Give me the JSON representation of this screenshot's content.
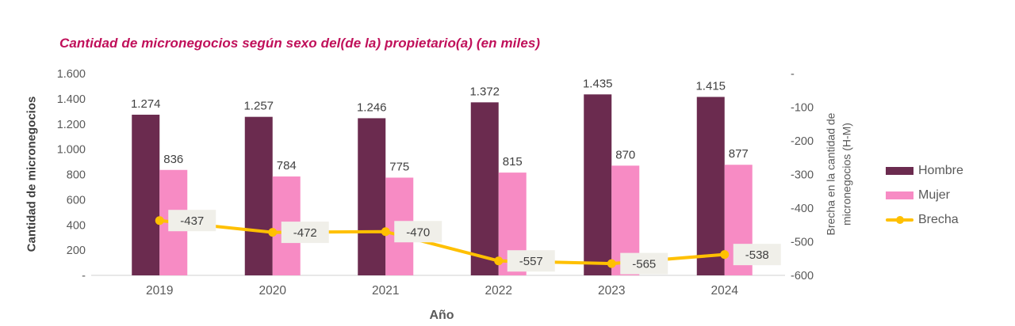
{
  "chart_data": {
    "type": "bar",
    "subtype": "grouped-bars-with-line-combo",
    "title": "Cantidad de micronegocios según sexo del(de la) propietario(a) (en miles)",
    "categories": [
      "2019",
      "2020",
      "2021",
      "2022",
      "2023",
      "2024"
    ],
    "series": [
      {
        "name": "Hombre",
        "type": "bar",
        "axis": "left",
        "color": "#6B2B4F",
        "values": [
          1274,
          1257,
          1246,
          1372,
          1435,
          1415
        ],
        "labels": [
          "1.274",
          "1.257",
          "1.246",
          "1.372",
          "1.435",
          "1.415"
        ]
      },
      {
        "name": "Mujer",
        "type": "bar",
        "axis": "left",
        "color": "#F78BC4",
        "values": [
          836,
          784,
          775,
          815,
          870,
          877
        ],
        "labels": [
          "836",
          "784",
          "775",
          "815",
          "870",
          "877"
        ]
      },
      {
        "name": "Brecha",
        "type": "line",
        "axis": "right",
        "color": "#FFC000",
        "values": [
          -437,
          -472,
          -470,
          -557,
          -565,
          -538
        ],
        "labels": [
          "-437",
          "-472",
          "-470",
          "-557",
          "-565",
          "-538"
        ]
      }
    ],
    "left_axis": {
      "title": "Cantidad de micronegocios",
      "min": 0,
      "max": 1600,
      "tick_labels": [
        "1.600",
        "1.400",
        "1.200",
        "1.000",
        "800",
        "600",
        "400",
        "200",
        "-"
      ]
    },
    "right_axis": {
      "title": "Brecha en la cantidad de micronegocios (H-M)",
      "title_lines": [
        "Brecha en la cantidad de",
        "micronegocios (H-M)"
      ],
      "min": -600,
      "max": 0,
      "tick_labels": [
        "-",
        "-100",
        "-200",
        "-300",
        "-400",
        "-500",
        "-600"
      ]
    },
    "x_axis": {
      "title": "Año"
    },
    "legend": [
      "Hombre",
      "Mujer",
      "Brecha"
    ],
    "legend_position": "right",
    "grid": false,
    "styles": {
      "title_color": "#C0105A",
      "tick_color": "#595959",
      "value_label_color": "#404040",
      "line_label_bg": "#F0EFE9",
      "baseline_color": "#D9D9D9",
      "background": "#FFFFFF"
    }
  }
}
